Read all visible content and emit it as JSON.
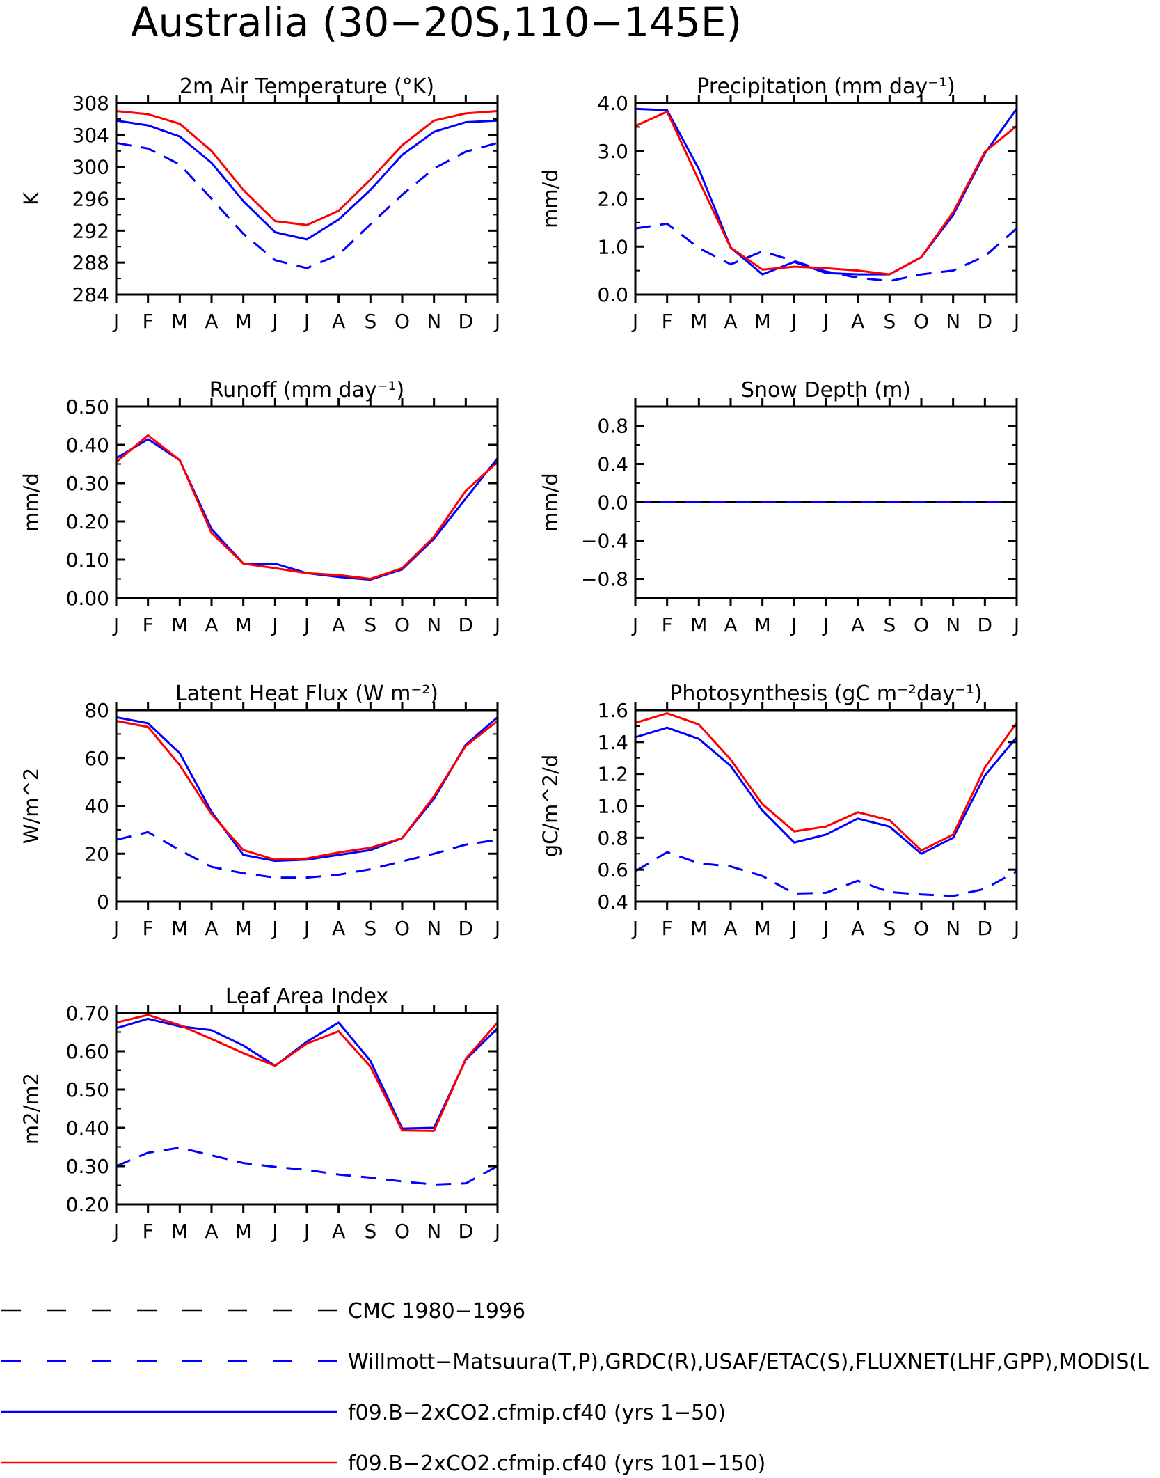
{
  "page_title": "Australia (30−20S,110−145E)",
  "months": [
    "J",
    "F",
    "M",
    "A",
    "M",
    "J",
    "J",
    "A",
    "S",
    "O",
    "N",
    "D",
    "J"
  ],
  "colors": {
    "obs": "#0000ff",
    "run1": "#0000ff",
    "run2": "#ff0000",
    "axis": "#000000"
  },
  "legend": [
    {
      "label": "CMC 1980−1996",
      "color": "#000000",
      "style": "dashed"
    },
    {
      "label": "Willmott−Matsuura(T,P),GRDC(R),USAF/ETAC(S),FLUXNET(LHF,GPP),MODIS(L",
      "color": "#0000ff",
      "style": "dashed"
    },
    {
      "label": "f09.B−2xCO2.cfmip.cf40 (yrs 1−50)",
      "color": "#0000ff",
      "style": "solid"
    },
    {
      "label": "f09.B−2xCO2.cfmip.cf40 (yrs 101−150)",
      "color": "#ff0000",
      "style": "solid"
    }
  ],
  "chart_data": [
    {
      "type": "line",
      "title": "2m Air Temperature (°K)",
      "ylabel": "K",
      "ylim": [
        284,
        308
      ],
      "yticks": [
        "284",
        "288",
        "292",
        "296",
        "300",
        "304",
        "308"
      ],
      "x": [
        "J",
        "F",
        "M",
        "A",
        "M",
        "J",
        "J",
        "A",
        "S",
        "O",
        "N",
        "D",
        "J"
      ],
      "series": [
        {
          "name": "Willmott−Matsuura(T,P),GRDC(R),USAF/ETAC(S),FLUXNET(LHF,GPP),MODIS(L",
          "style": "dashed",
          "color": "#0000ff",
          "values": [
            303.0,
            302.3,
            300.3,
            296.0,
            291.6,
            288.3,
            287.3,
            289.0,
            292.8,
            296.5,
            299.8,
            301.9,
            303.0
          ]
        },
        {
          "name": "f09.B−2xCO2.cfmip.cf40 (yrs 1−50)",
          "style": "solid",
          "color": "#0000ff",
          "values": [
            305.8,
            305.2,
            303.8,
            300.5,
            295.7,
            291.8,
            290.9,
            293.4,
            297.1,
            301.5,
            304.4,
            305.6,
            305.8
          ]
        },
        {
          "name": "f09.B−2xCO2.cfmip.cf40 (yrs 101−150)",
          "style": "solid",
          "color": "#ff0000",
          "values": [
            307.0,
            306.6,
            305.4,
            302.0,
            297.1,
            293.2,
            292.7,
            294.5,
            298.4,
            302.7,
            305.8,
            306.7,
            307.0
          ]
        }
      ]
    },
    {
      "type": "line",
      "title": "Precipitation (mm day⁻¹)",
      "ylabel": "mm/d",
      "ylim": [
        0.0,
        4.0
      ],
      "yticks": [
        "0.0",
        "1.0",
        "2.0",
        "3.0",
        "4.0"
      ],
      "x": [
        "J",
        "F",
        "M",
        "A",
        "M",
        "J",
        "J",
        "A",
        "S",
        "O",
        "N",
        "D",
        "J"
      ],
      "series": [
        {
          "name": "Willmott−Matsuura(T,P),GRDC(R),USAF/ETAC(S),FLUXNET(LHF,GPP),MODIS(L",
          "style": "dashed",
          "color": "#0000ff",
          "values": [
            1.38,
            1.48,
            0.97,
            0.63,
            0.9,
            0.7,
            0.48,
            0.35,
            0.28,
            0.42,
            0.5,
            0.8,
            1.38
          ]
        },
        {
          "name": "f09.B−2xCO2.cfmip.cf40 (yrs 1−50)",
          "style": "solid",
          "color": "#0000ff",
          "values": [
            3.88,
            3.85,
            2.62,
            0.98,
            0.42,
            0.68,
            0.45,
            0.42,
            0.42,
            0.78,
            1.66,
            2.95,
            3.88
          ]
        },
        {
          "name": "f09.B−2xCO2.cfmip.cf40 (yrs 101−150)",
          "style": "solid",
          "color": "#ff0000",
          "values": [
            3.52,
            3.82,
            2.38,
            0.98,
            0.52,
            0.58,
            0.55,
            0.5,
            0.42,
            0.78,
            1.72,
            2.98,
            3.52
          ]
        }
      ]
    },
    {
      "type": "line",
      "title": "Runoff (mm day⁻¹)",
      "ylabel": "mm/d",
      "ylim": [
        0.0,
        0.5
      ],
      "yticks": [
        "0.00",
        "0.10",
        "0.20",
        "0.30",
        "0.40",
        "0.50"
      ],
      "x": [
        "J",
        "F",
        "M",
        "A",
        "M",
        "J",
        "J",
        "A",
        "S",
        "O",
        "N",
        "D",
        "J"
      ],
      "series": [
        {
          "name": "Willmott−Matsuura(T,P),GRDC(R),USAF/ETAC(S),FLUXNET(LHF,GPP),MODIS(L",
          "style": "dashed",
          "color": "#0000ff",
          "values": [
            0,
            0,
            0,
            0,
            0,
            0,
            0,
            0,
            0,
            0,
            0,
            0,
            0
          ]
        },
        {
          "name": "f09.B−2xCO2.cfmip.cf40 (yrs 1−50)",
          "style": "solid",
          "color": "#0000ff",
          "values": [
            0.365,
            0.415,
            0.36,
            0.18,
            0.09,
            0.09,
            0.065,
            0.055,
            0.048,
            0.075,
            0.155,
            0.26,
            0.365
          ]
        },
        {
          "name": "f09.B−2xCO2.cfmip.cf40 (yrs 101−150)",
          "style": "solid",
          "color": "#ff0000",
          "values": [
            0.355,
            0.425,
            0.36,
            0.17,
            0.09,
            0.078,
            0.065,
            0.06,
            0.05,
            0.078,
            0.16,
            0.28,
            0.355
          ]
        }
      ]
    },
    {
      "type": "line",
      "title": "Snow Depth (m)",
      "ylabel": "mm/d",
      "ylim": [
        -1.0,
        1.0
      ],
      "yticks": [
        "−0.8",
        "−0.4",
        "0.0",
        "0.4",
        "0.8"
      ],
      "ytickvals": [
        -0.8,
        -0.4,
        0.0,
        0.4,
        0.8
      ],
      "x": [
        "J",
        "F",
        "M",
        "A",
        "M",
        "J",
        "J",
        "A",
        "S",
        "O",
        "N",
        "D",
        "J"
      ],
      "series": [
        {
          "name": "f09.B−2xCO2.cfmip.cf40 (yrs 1−50)",
          "style": "solid",
          "color": "#000000",
          "values": [
            0,
            0,
            0,
            0,
            0,
            0,
            0,
            0,
            0,
            0,
            0,
            0,
            0
          ]
        },
        {
          "name": "Willmott−Matsuura(T,P),GRDC(R),USAF/ETAC(S),FLUXNET(LHF,GPP),MODIS(L",
          "style": "dashed",
          "color": "#0000ff",
          "values": [
            0,
            0,
            0,
            0,
            0,
            0,
            0,
            0,
            0,
            0,
            0,
            0,
            0
          ]
        }
      ]
    },
    {
      "type": "line",
      "title": "Latent Heat Flux (W m⁻²)",
      "ylabel": "W/m^2",
      "ylim": [
        0,
        80
      ],
      "yticks": [
        "0",
        "20",
        "40",
        "60",
        "80"
      ],
      "x": [
        "J",
        "F",
        "M",
        "A",
        "M",
        "J",
        "J",
        "A",
        "S",
        "O",
        "N",
        "D",
        "J"
      ],
      "series": [
        {
          "name": "Willmott−Matsuura(T,P),GRDC(R),USAF/ETAC(S),FLUXNET(LHF,GPP),MODIS(L",
          "style": "dashed",
          "color": "#0000ff",
          "values": [
            25.8,
            29.0,
            21.5,
            14.5,
            11.8,
            10.0,
            10.0,
            11.2,
            13.5,
            16.8,
            20.0,
            23.8,
            25.8
          ]
        },
        {
          "name": "f09.B−2xCO2.cfmip.cf40 (yrs 1−50)",
          "style": "solid",
          "color": "#0000ff",
          "values": [
            77.0,
            74.5,
            62.0,
            37.5,
            19.5,
            17.0,
            17.5,
            19.5,
            21.5,
            26.5,
            43.0,
            65.5,
            77.0
          ]
        },
        {
          "name": "f09.B−2xCO2.cfmip.cf40 (yrs 101−150)",
          "style": "solid",
          "color": "#ff0000",
          "values": [
            75.5,
            73.0,
            57.0,
            36.5,
            21.5,
            17.5,
            18.0,
            20.5,
            22.5,
            26.5,
            44.0,
            65.0,
            75.5
          ]
        }
      ]
    },
    {
      "type": "line",
      "title": "Photosynthesis (gC m⁻²day⁻¹)",
      "ylabel": "gC/m^2/d",
      "ylim": [
        0.4,
        1.6
      ],
      "yticks": [
        "0.4",
        "0.6",
        "0.8",
        "1.0",
        "1.2",
        "1.4",
        "1.6"
      ],
      "x": [
        "J",
        "F",
        "M",
        "A",
        "M",
        "J",
        "J",
        "A",
        "S",
        "O",
        "N",
        "D",
        "J"
      ],
      "series": [
        {
          "name": "Willmott−Matsuura(T,P),GRDC(R),USAF/ETAC(S),FLUXNET(LHF,GPP),MODIS(L",
          "style": "dashed",
          "color": "#0000ff",
          "values": [
            0.59,
            0.71,
            0.64,
            0.62,
            0.56,
            0.45,
            0.455,
            0.53,
            0.46,
            0.445,
            0.435,
            0.48,
            0.59
          ]
        },
        {
          "name": "f09.B−2xCO2.cfmip.cf40 (yrs 1−50)",
          "style": "solid",
          "color": "#0000ff",
          "values": [
            1.43,
            1.49,
            1.42,
            1.25,
            0.97,
            0.77,
            0.82,
            0.92,
            0.87,
            0.7,
            0.8,
            1.19,
            1.43
          ]
        },
        {
          "name": "f09.B−2xCO2.cfmip.cf40 (yrs 101−150)",
          "style": "solid",
          "color": "#ff0000",
          "values": [
            1.52,
            1.58,
            1.51,
            1.29,
            1.01,
            0.84,
            0.87,
            0.96,
            0.91,
            0.72,
            0.82,
            1.24,
            1.52
          ]
        }
      ]
    },
    {
      "type": "line",
      "title": "Leaf Area Index",
      "ylabel": "m2/m2",
      "ylim": [
        0.2,
        0.7
      ],
      "yticks": [
        "0.20",
        "0.30",
        "0.40",
        "0.50",
        "0.60",
        "0.70"
      ],
      "x": [
        "J",
        "F",
        "M",
        "A",
        "M",
        "J",
        "J",
        "A",
        "S",
        "O",
        "N",
        "D",
        "J"
      ],
      "series": [
        {
          "name": "Willmott−Matsuura(T,P),GRDC(R),USAF/ETAC(S),FLUXNET(LHF,GPP),MODIS(L",
          "style": "dashed",
          "color": "#0000ff",
          "values": [
            0.3,
            0.335,
            0.348,
            0.328,
            0.308,
            0.298,
            0.29,
            0.278,
            0.27,
            0.26,
            0.252,
            0.255,
            0.3
          ]
        },
        {
          "name": "f09.B−2xCO2.cfmip.cf40 (yrs 1−50)",
          "style": "solid",
          "color": "#0000ff",
          "values": [
            0.66,
            0.685,
            0.665,
            0.655,
            0.615,
            0.562,
            0.625,
            0.675,
            0.575,
            0.398,
            0.4,
            0.578,
            0.66
          ]
        },
        {
          "name": "f09.B−2xCO2.cfmip.cf40 (yrs 101−150)",
          "style": "solid",
          "color": "#ff0000",
          "values": [
            0.675,
            0.695,
            0.668,
            0.632,
            0.595,
            0.562,
            0.62,
            0.652,
            0.56,
            0.393,
            0.392,
            0.58,
            0.675
          ]
        }
      ]
    }
  ]
}
